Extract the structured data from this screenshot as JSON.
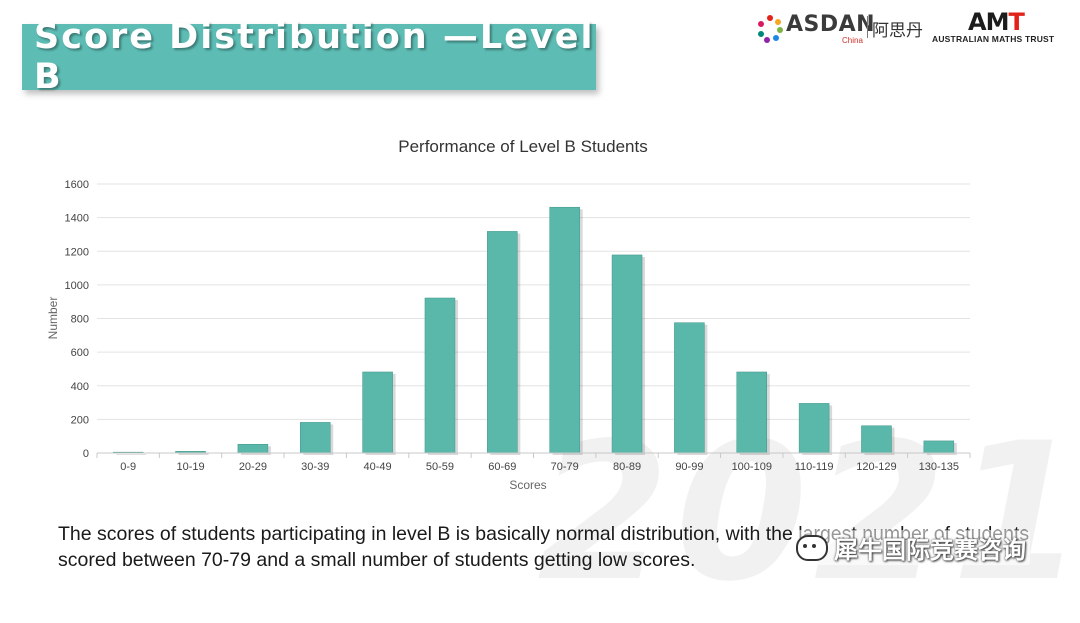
{
  "slide": {
    "title": "Score Distribution —Level B",
    "caption": "The scores of students participating in level B is basically normal distribution, with the largest number of students scored between 70-79 and a small number of students getting low scores."
  },
  "logos": {
    "asdan": {
      "word": "ASDAN",
      "sub": "China",
      "cn": "阿思丹"
    },
    "amt": {
      "mark_left": "AM",
      "mark_right": "T",
      "sub": "AUSTRALIAN MATHS TRUST"
    }
  },
  "watermark": {
    "text": "犀牛国际竞赛咨询",
    "background_year": "2021"
  },
  "colors": {
    "banner": "#5dbdb5",
    "bar": "#5ab8aa",
    "bar_edge": "#3f9488"
  },
  "chart_data": {
    "type": "bar",
    "title": "Performance of Level B Students",
    "xlabel": "Scores",
    "ylabel": "Number",
    "ylim": [
      0,
      1600
    ],
    "yticks": [
      0,
      200,
      400,
      600,
      800,
      1000,
      1200,
      1400,
      1600
    ],
    "grid": true,
    "categories": [
      "0-9",
      "10-19",
      "20-29",
      "30-39",
      "40-49",
      "50-59",
      "60-69",
      "70-79",
      "80-89",
      "90-99",
      "100-109",
      "110-119",
      "120-129",
      "130-135"
    ],
    "values": [
      5,
      10,
      52,
      182,
      482,
      922,
      1318,
      1462,
      1178,
      775,
      482,
      295,
      162,
      72
    ]
  }
}
